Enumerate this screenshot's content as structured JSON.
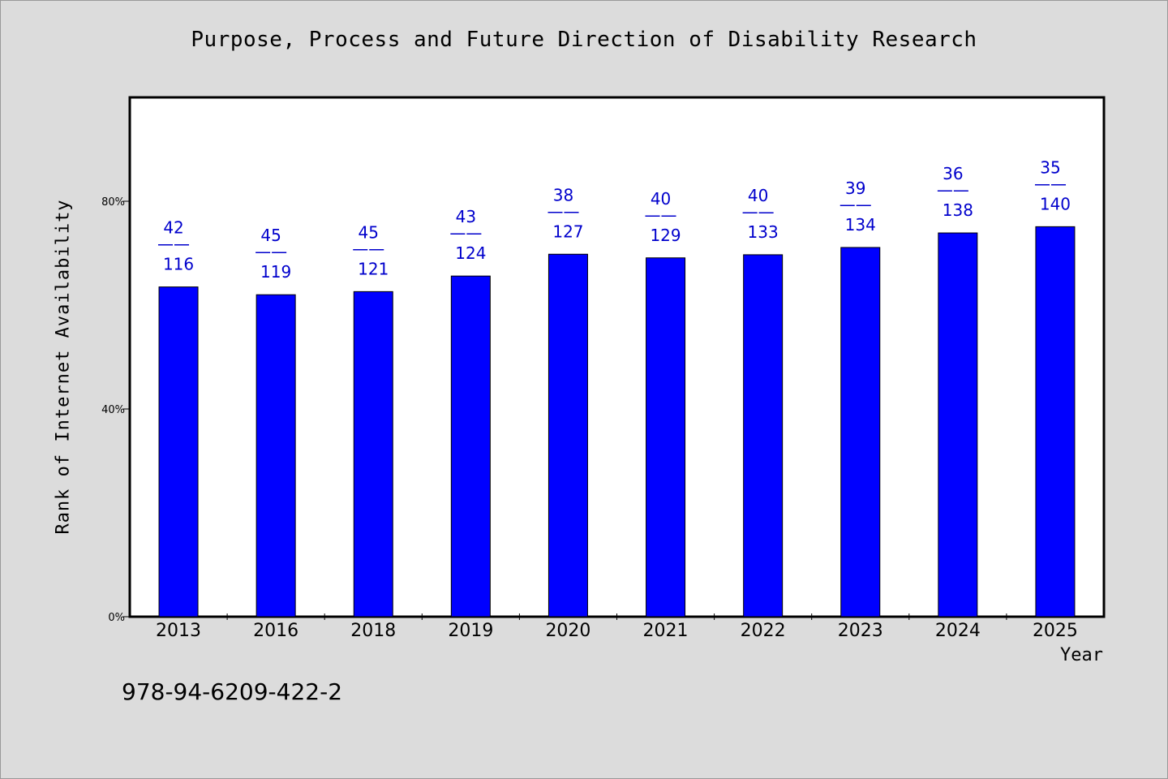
{
  "chart_data": {
    "type": "bar",
    "title": "Purpose, Process and Future Direction of Disability Research",
    "xlabel": "Year",
    "ylabel": "Rank of Internet Availability",
    "categories": [
      "2013",
      "2016",
      "2018",
      "2019",
      "2020",
      "2021",
      "2022",
      "2023",
      "2024",
      "2025"
    ],
    "values": [
      63.5,
      62.0,
      62.6,
      65.6,
      69.8,
      69.1,
      69.7,
      71.1,
      73.9,
      75.1
    ],
    "data_labels": [
      {
        "top": "42",
        "sep": "——",
        "bottom": "116"
      },
      {
        "top": "45",
        "sep": "——",
        "bottom": "119"
      },
      {
        "top": "45",
        "sep": "——",
        "bottom": "121"
      },
      {
        "top": "43",
        "sep": "——",
        "bottom": "124"
      },
      {
        "top": "38",
        "sep": "——",
        "bottom": "127"
      },
      {
        "top": "40",
        "sep": "——",
        "bottom": "129"
      },
      {
        "top": "40",
        "sep": "——",
        "bottom": "133"
      },
      {
        "top": "39",
        "sep": "——",
        "bottom": "134"
      },
      {
        "top": "36",
        "sep": "——",
        "bottom": "138"
      },
      {
        "top": "35",
        "sep": "——",
        "bottom": "140"
      }
    ],
    "ylim": [
      0,
      100
    ],
    "yticks": [
      0,
      40,
      80
    ],
    "ytick_labels": [
      "0%",
      "40%",
      "80%"
    ],
    "grid": false,
    "bar_color": "#0000ff",
    "label_color": "#0000cc"
  },
  "footer": {
    "isbn": "978-94-6209-422-2"
  }
}
